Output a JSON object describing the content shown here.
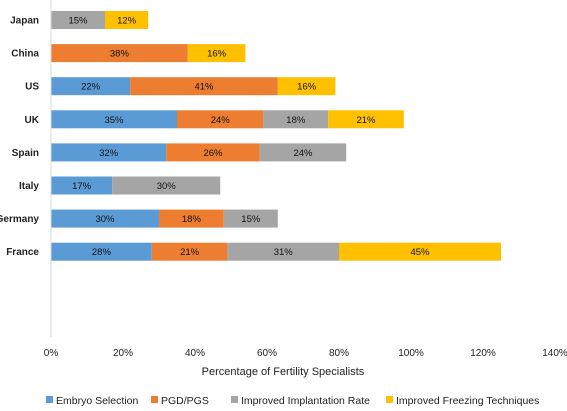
{
  "chart_data": {
    "type": "bar",
    "orientation": "horizontal",
    "stacked": true,
    "categories": [
      "Japan",
      "China",
      "US",
      "UK",
      "Spain",
      "Italy",
      "Germany",
      "France"
    ],
    "series": [
      {
        "name": "Embryo Selection",
        "color": "#5b9bd5",
        "values": [
          null,
          null,
          22,
          35,
          32,
          17,
          30,
          28
        ]
      },
      {
        "name": "PGD/PGS",
        "color": "#ed7d31",
        "values": [
          null,
          38,
          41,
          24,
          26,
          null,
          18,
          21
        ]
      },
      {
        "name": "Improved Implantation Rate",
        "color": "#a5a5a5",
        "values": [
          15,
          null,
          null,
          18,
          24,
          30,
          15,
          31
        ]
      },
      {
        "name": "Improved Freezing Techniques",
        "color": "#ffc000",
        "values": [
          12,
          16,
          16,
          21,
          null,
          null,
          null,
          45
        ]
      }
    ],
    "value_suffix": "%",
    "xlabel": "Percentage of Fertility Specialists",
    "ylabel": "",
    "xlim": [
      0,
      140
    ],
    "x_ticks": [
      0,
      20,
      40,
      60,
      80,
      100,
      120,
      140
    ],
    "x_tick_labels": [
      "0%",
      "20%",
      "40%",
      "60%",
      "80%",
      "100%",
      "120%",
      "140%"
    ],
    "grid": false,
    "legend_position": "bottom"
  }
}
